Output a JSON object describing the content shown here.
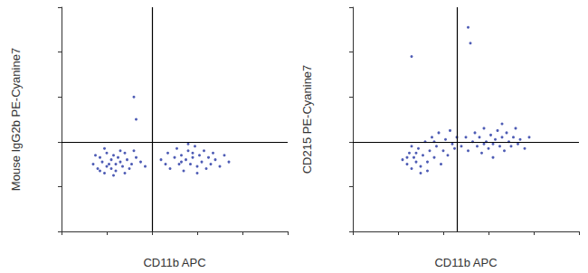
{
  "chart_data": [
    {
      "type": "scatter",
      "x_label": "CD11b APC",
      "y_label": "Mouse IgG2b PE-Cyanine7",
      "xlim": [
        0,
        100
      ],
      "ylim": [
        0,
        100
      ],
      "xticks": [
        0,
        20,
        40,
        60,
        80,
        100
      ],
      "yticks": [
        0,
        20,
        40,
        60,
        80,
        100
      ],
      "tick_labels": false,
      "grid": false,
      "color": "#2f3fa8",
      "marker": "circle",
      "gates": {
        "x": 40,
        "y": 40
      },
      "x": [
        14,
        16,
        17,
        18,
        19,
        20,
        21,
        22,
        22,
        23,
        24,
        24,
        25,
        26,
        27,
        28,
        29,
        30,
        31,
        33,
        35,
        37,
        15,
        19,
        23,
        26,
        20,
        28,
        17,
        32,
        32,
        33,
        44,
        46,
        47,
        48,
        50,
        51,
        52,
        53,
        54,
        55,
        56,
        57,
        58,
        59,
        60,
        61,
        62,
        63,
        64,
        65,
        66,
        67,
        68,
        70,
        72,
        74,
        56,
        60,
        53,
        58
      ],
      "values": [
        30,
        28,
        33,
        31,
        26,
        35,
        30,
        32,
        28,
        34,
        30,
        27,
        33,
        31,
        29,
        35,
        32,
        28,
        30,
        33,
        31,
        29,
        34,
        37,
        25,
        36,
        29,
        26,
        27,
        36,
        60,
        50,
        32,
        30,
        35,
        28,
        33,
        37,
        30,
        34,
        27,
        32,
        36,
        30,
        33,
        38,
        29,
        34,
        31,
        36,
        28,
        33,
        30,
        35,
        32,
        29,
        34,
        31,
        39,
        26,
        31,
        35
      ]
    },
    {
      "type": "scatter",
      "x_label": "CD11b APC",
      "y_label": "CD215 PE-Cyanine7",
      "xlim": [
        0,
        100
      ],
      "ylim": [
        0,
        100
      ],
      "xticks": [
        0,
        20,
        40,
        60,
        80,
        100
      ],
      "yticks": [
        0,
        20,
        40,
        60,
        80,
        100
      ],
      "tick_labels": false,
      "grid": false,
      "color": "#2f3fa8",
      "marker": "circle",
      "gates": {
        "x": 46,
        "y": 40
      },
      "x": [
        22,
        24,
        25,
        26,
        27,
        28,
        29,
        30,
        31,
        32,
        33,
        34,
        35,
        36,
        37,
        38,
        40,
        41,
        42,
        44,
        46,
        26,
        30,
        28,
        33,
        36,
        24,
        39,
        43,
        45,
        51,
        52,
        26,
        48,
        50,
        51,
        53,
        54,
        55,
        56,
        57,
        58,
        59,
        60,
        61,
        62,
        63,
        64,
        65,
        66,
        67,
        68,
        69,
        70,
        71,
        72,
        73,
        74,
        76,
        78,
        62,
        66,
        58
      ],
      "values": [
        32,
        30,
        35,
        28,
        33,
        31,
        37,
        29,
        34,
        40,
        31,
        36,
        42,
        33,
        38,
        44,
        36,
        41,
        34,
        39,
        42,
        38,
        26,
        35,
        27,
        40,
        33,
        30,
        45,
        37,
        91,
        84,
        78,
        38,
        42,
        36,
        40,
        44,
        38,
        42,
        35,
        46,
        40,
        37,
        43,
        39,
        41,
        45,
        38,
        42,
        36,
        44,
        40,
        38,
        42,
        46,
        39,
        41,
        37,
        42,
        33,
        48,
        39
      ]
    }
  ]
}
